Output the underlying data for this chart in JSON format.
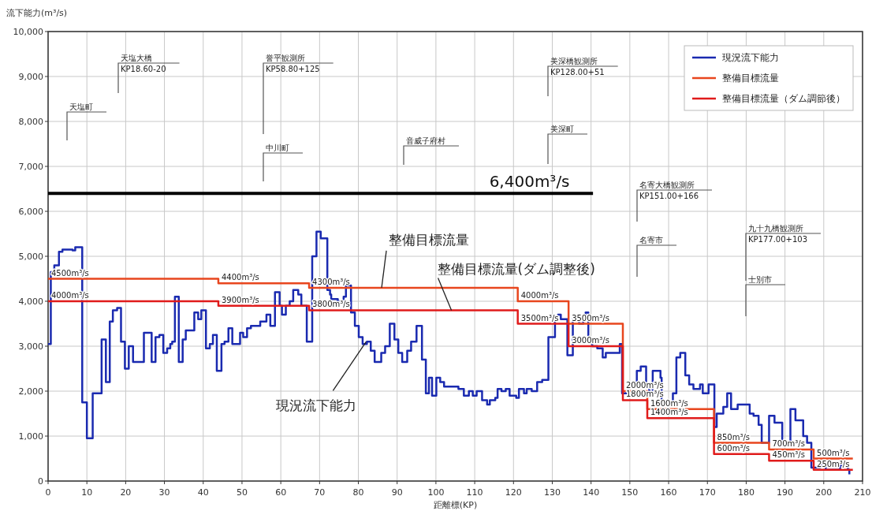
{
  "chart_data": {
    "type": "step",
    "xlabel": "距離標(KP)",
    "ylabel": "流下能力(m³/s)",
    "xlim": [
      0,
      210
    ],
    "ylim": [
      0,
      10000
    ],
    "xticks": [
      0,
      10,
      20,
      30,
      40,
      50,
      60,
      70,
      80,
      90,
      100,
      110,
      120,
      130,
      140,
      150,
      160,
      170,
      180,
      190,
      200,
      210
    ],
    "yticks": [
      0,
      {
        "value": 1000,
        "label": "1,000"
      },
      {
        "value": 2000,
        "label": "2,000"
      },
      {
        "value": 3000,
        "label": "3,000"
      },
      {
        "value": 4000,
        "label": "4,000"
      },
      {
        "value": 5000,
        "label": "5,000"
      },
      {
        "value": 6000,
        "label": "6,000"
      },
      {
        "value": 7000,
        "label": "7,000"
      },
      {
        "value": 8000,
        "label": "8,000"
      },
      {
        "value": 9000,
        "label": "9,000"
      },
      {
        "value": 10000,
        "label": "10,000"
      }
    ],
    "grid": true,
    "legend": "top right",
    "series": [
      {
        "name": "現況流下能力",
        "color": "#1a2ab0",
        "x": [
          0,
          0.7,
          1.6,
          2.8,
          3.7,
          6.3,
          7.0,
          8.8,
          10,
          11.5,
          13.8,
          14.9,
          15.9,
          16.7,
          17.8,
          18.8,
          19.8,
          20.8,
          21.9,
          24.7,
          26.7,
          27.7,
          28.7,
          29.7,
          30.7,
          31.5,
          32.0,
          32.7,
          33.7,
          34.7,
          35.5,
          37.7,
          38.7,
          39.5,
          40.7,
          41.7,
          42.5,
          43.5,
          44.7,
          45.5,
          46.5,
          47.5,
          49.5,
          50.3,
          51.3,
          52.3,
          54.7,
          56.3,
          57.3,
          58.5,
          59.7,
          60.3,
          61.3,
          62.3,
          63.2,
          64.5,
          65.3,
          66.7,
          68.1,
          69.2,
          70.3,
          72.0,
          72.7,
          73.0,
          74.7,
          75.7,
          76.2,
          76.8,
          78.1,
          79.1,
          80.1,
          81.1,
          82.2,
          83.2,
          84.2,
          85.9,
          86.9,
          88.1,
          89.3,
          90.3,
          91.3,
          92.6,
          93.6,
          95.0,
          96.4,
          97.4,
          98.2,
          99.0,
          100.1,
          101.1,
          102.1,
          105.8,
          107.2,
          108.5,
          109.5,
          110.5,
          111.9,
          113.2,
          113.9,
          115.3,
          115.9,
          116.9,
          118.0,
          119.0,
          120.7,
          121.4,
          122.7,
          123.4,
          124.7,
          126.1,
          127.4,
          129.0,
          130.7,
          131.5,
          132.2,
          133.9,
          135.3,
          136.9,
          138.0,
          138.6,
          139.3,
          140.3,
          141.6,
          143.0,
          143.8,
          147.4,
          148.0,
          149.1,
          149.6,
          151.8,
          152.8,
          154.2,
          155.0,
          155.9,
          157.9,
          158.2,
          161.1,
          162.0,
          163.0,
          164.3,
          165.3,
          166.4,
          168.1,
          168.8,
          170.3,
          171.8,
          172.4,
          174.1,
          175.1,
          176.1,
          177.8,
          180.9,
          181.9,
          183.2,
          184.0,
          185.9,
          187.3,
          189.3,
          191.4,
          192.7,
          194.7,
          195.7,
          196.8,
          199.1,
          200.5,
          204.2,
          206.2,
          206.6
        ],
        "values": [
          3050,
          4650,
          4800,
          5100,
          5150,
          5130,
          5200,
          1750,
          950,
          1950,
          3150,
          2200,
          3550,
          3800,
          3850,
          3100,
          2500,
          3000,
          2650,
          3300,
          2650,
          3200,
          3250,
          2850,
          2950,
          3050,
          3100,
          4100,
          2650,
          3150,
          3350,
          3750,
          3600,
          3800,
          2950,
          3050,
          3250,
          2450,
          3050,
          3100,
          3400,
          3050,
          3300,
          3200,
          3400,
          3450,
          3550,
          3700,
          3450,
          4200,
          3900,
          3700,
          3900,
          4000,
          4250,
          4150,
          3900,
          3100,
          5000,
          5550,
          5400,
          4250,
          4150,
          4050,
          4000,
          3950,
          4100,
          4350,
          3750,
          3450,
          3200,
          3050,
          3100,
          2900,
          2650,
          2850,
          3000,
          3500,
          3150,
          2850,
          2650,
          2900,
          3100,
          3450,
          2700,
          1950,
          2300,
          1900,
          2300,
          2200,
          2100,
          2050,
          1900,
          2000,
          1900,
          2000,
          1800,
          1700,
          1800,
          1850,
          2050,
          2000,
          2050,
          1900,
          1850,
          2050,
          1950,
          2050,
          2000,
          2200,
          2250,
          3200,
          3650,
          3700,
          3600,
          2800,
          3600,
          3500,
          3650,
          3750,
          3150,
          3000,
          2950,
          2750,
          2850,
          3050,
          1950,
          2000,
          2100,
          2450,
          2550,
          2100,
          1950,
          2450,
          2300,
          1700,
          1950,
          2750,
          2850,
          2350,
          2150,
          2050,
          2150,
          1950,
          2150,
          1200,
          1500,
          1650,
          1950,
          1600,
          1700,
          1500,
          1450,
          1250,
          850,
          1450,
          1300,
          800,
          1600,
          1350,
          1000,
          850,
          300,
          350,
          250,
          350,
          250,
          150
        ]
      },
      {
        "name": "整備目標流量",
        "color": "#e8461e",
        "x": [
          0,
          43.9,
          67.3,
          121.1,
          134.2,
          148.2,
          154.5,
          171.7,
          185.9,
          197.4,
          207.5
        ],
        "values": [
          4500,
          4400,
          4300,
          4000,
          3500,
          2000,
          1600,
          850,
          700,
          500,
          500
        ],
        "value_labels": [
          "4500m³/s",
          "4400m³/s",
          "4300m³/s",
          "4000m³/s",
          "3500m³/s",
          "2000m³/s",
          "1600m³/s",
          "850m³/s",
          "700m³/s",
          "500m³/s",
          null
        ]
      },
      {
        "name": "整備目標流量（ダム調節後）",
        "color": "#e01b1b",
        "x": [
          0,
          43.9,
          67.3,
          121.1,
          134.2,
          148.2,
          154.5,
          171.7,
          185.9,
          197.4,
          207.5
        ],
        "values": [
          4000,
          3900,
          3800,
          3500,
          3000,
          1800,
          1400,
          600,
          450,
          250,
          250
        ],
        "value_labels": [
          "4000m³/s",
          "3900m³/s",
          "3800m³/s",
          "3500m³/s",
          "3000m³/s",
          "1800m³/s",
          "1400m³/s",
          "600m³/s",
          "450m³/s",
          "250m³/s",
          null
        ]
      },
      {
        "type": "line",
        "color": "#000000",
        "x": [
          0,
          140.5
        ],
        "values": [
          6400,
          6400
        ]
      }
    ],
    "annotations": [
      {
        "text": "6,400m³/s",
        "x": 128,
        "y": 6400
      },
      "天塩町",
      "天塩大橋\nKP18.60-20",
      "誉平観測所\nKP58.80+125",
      "中川町",
      "音威子府村",
      "美深橋観測所\nKP128.00+51",
      "美深町",
      "名寄大橋観測所\nKP151.00+166",
      "名寄市",
      "九十九橋観測所\nKP177.00+103",
      "士別市",
      {
        "text": "整備目標流量",
        "x": 86,
        "y": 4300
      },
      {
        "text": "整備目標流量(ダム調整後)",
        "x": 104,
        "y": 3800
      },
      {
        "text": "現況流下能力",
        "x": 82,
        "y": 3100
      }
    ]
  }
}
